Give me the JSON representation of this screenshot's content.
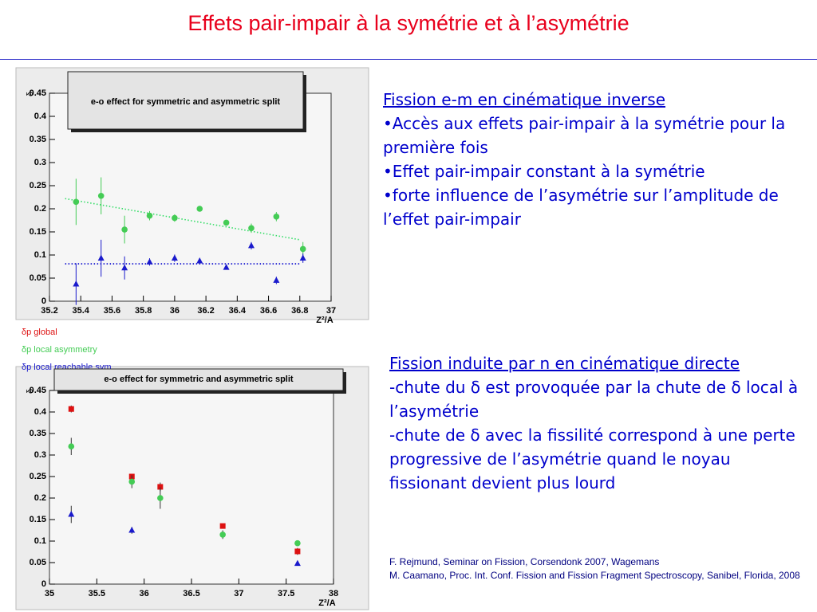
{
  "title": "Effets pair-impair à la symétrie et à l’asymétrie",
  "chart_data": [
    {
      "type": "scatter",
      "title": "e-o effect for symmetric and asymmetric split",
      "xlabel": "Z²/A",
      "ylabel": "δ",
      "xlim": [
        35.2,
        37
      ],
      "xticks": [
        35.2,
        35.4,
        35.6,
        35.8,
        36,
        36.2,
        36.4,
        36.6,
        36.8,
        37
      ],
      "ylim": [
        0,
        0.45
      ],
      "yticks": [
        0,
        0.05,
        0.1,
        0.15,
        0.2,
        0.25,
        0.3,
        0.35,
        0.4,
        0.45
      ],
      "x": [
        35.37,
        35.53,
        35.68,
        35.84,
        36.0,
        36.16,
        36.33,
        36.49,
        36.65,
        36.82
      ],
      "series": [
        {
          "color": "#44cc55",
          "marker": "circle",
          "values": [
            0.215,
            0.228,
            0.155,
            0.185,
            0.18,
            0.2,
            0.17,
            0.158,
            0.183,
            0.113
          ],
          "errors": [
            0.05,
            0.04,
            0.03,
            0.01,
            0.008,
            0.005,
            0.005,
            0.01,
            0.01,
            0.015
          ]
        },
        {
          "color": "#1a1acc",
          "marker": "triangle",
          "values": [
            0.037,
            0.093,
            0.072,
            0.085,
            0.093,
            0.087,
            0.073,
            0.12,
            0.045,
            0.093
          ],
          "errors": [
            0.045,
            0.04,
            0.025,
            0.008,
            0.008,
            0.004,
            0.004,
            0.008,
            0.008,
            0.01
          ]
        }
      ],
      "fits": [
        {
          "color": "#33dd66",
          "x": [
            35.3,
            36.8
          ],
          "values": [
            0.222,
            0.133
          ]
        },
        {
          "color": "#0000cc",
          "x": [
            35.3,
            36.8
          ],
          "values": [
            0.081,
            0.081
          ]
        }
      ]
    },
    {
      "type": "scatter",
      "title": "e-o effect for symmetric and asymmetric split",
      "xlabel": "Z²/A",
      "ylabel": "δ",
      "xlim": [
        35,
        38
      ],
      "xticks": [
        35,
        35.5,
        36,
        36.5,
        37,
        37.5,
        38
      ],
      "ylim": [
        0,
        0.45
      ],
      "yticks": [
        0,
        0.05,
        0.1,
        0.15,
        0.2,
        0.25,
        0.3,
        0.35,
        0.4,
        0.45
      ],
      "x": [
        35.23,
        35.87,
        36.17,
        36.83,
        37.62
      ],
      "series": [
        {
          "name": "δp global",
          "color": "#dd1111",
          "marker": "square",
          "values": [
            0.407,
            0.25,
            0.226,
            0.135,
            0.076
          ],
          "errors": [
            0.008,
            0.005,
            0.01,
            0.005,
            0.008
          ]
        },
        {
          "name": "δp local asymmetry",
          "color": "#44cc55",
          "marker": "circle",
          "values": [
            0.32,
            0.238,
            0.2,
            0.115,
            0.095
          ],
          "errors": [
            0.02,
            0.015,
            0.025,
            0.01,
            0.005
          ]
        },
        {
          "name": "δp local reachable sym",
          "color": "#1a1acc",
          "marker": "triangle",
          "values": [
            0.162,
            0.125,
            null,
            null,
            0.048
          ],
          "errors": [
            0.02,
            0.008,
            null,
            null,
            0.003
          ]
        }
      ]
    }
  ],
  "block1": {
    "heading": "Fission e-m en cinématique inverse",
    "lines": [
      "•Accès aux effets pair-impair à la symétrie pour la première fois",
      "•Effet pair-impair constant à la symétrie",
      "•forte influence de l’asymétrie sur l’amplitude de l’effet pair-impair"
    ]
  },
  "block2": {
    "heading": "Fission induite par n en cinématique directe",
    "lines": [
      "-chute du δ est provoquée par la chute de δ local à  l’asymétrie",
      "-chute de  δ avec la fissilité correspond à une perte progressive de l’asymétrie quand le noyau fissionant devient plus lourd"
    ]
  },
  "references": [
    "F. Rejmund, Seminar on Fission, Corsendonk 2007, Wagemans",
    "M. Caamano, Proc. Int. Conf. Fission and Fission Fragment Spectroscopy,  Sanibel, Florida, 2008"
  ]
}
